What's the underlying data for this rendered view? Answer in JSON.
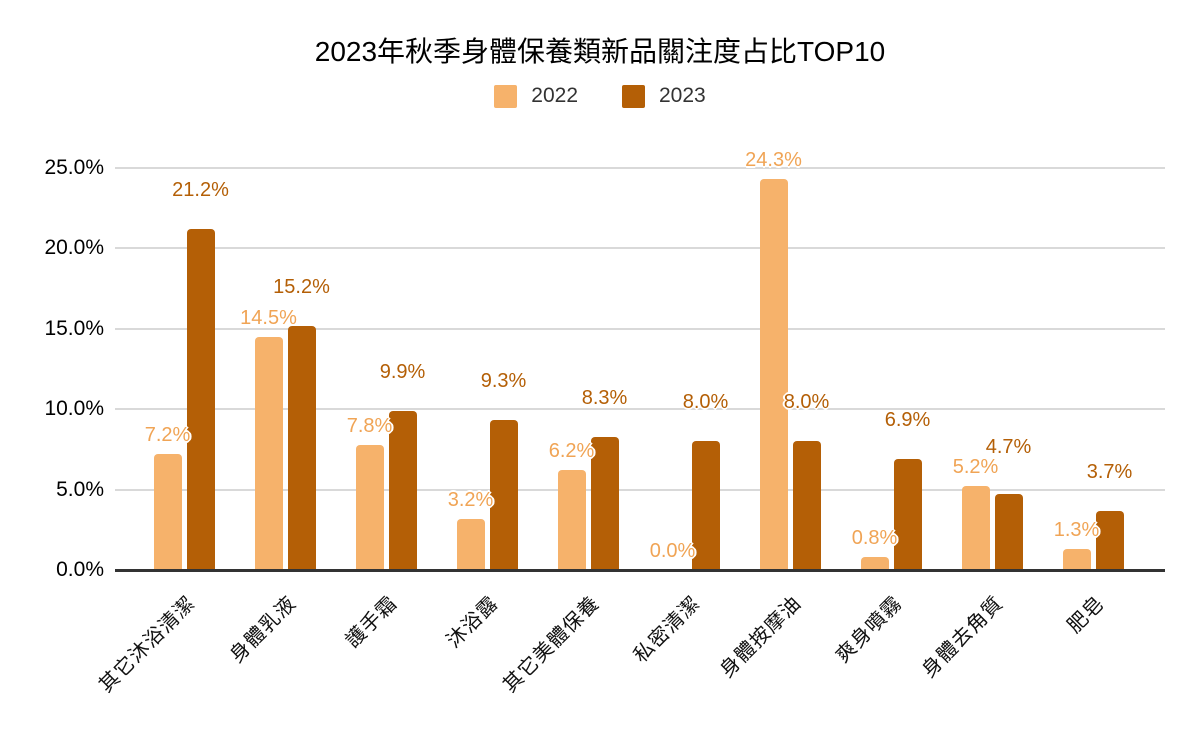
{
  "chart_data": {
    "type": "bar",
    "title": "2023年秋季身體保養類新品關注度占比TOP10",
    "xlabel": "",
    "ylabel": "",
    "categories": [
      "其它沐浴清潔",
      "身體乳液",
      "護手霜",
      "沐浴露",
      "其它美體保養",
      "私密清潔",
      "身體按摩油",
      "爽身噴霧",
      "身體去角質",
      "肥皂"
    ],
    "series": [
      {
        "name": "2022",
        "color": "#F6B26B",
        "label_color": "#F0A455",
        "values": [
          7.2,
          14.5,
          7.8,
          3.2,
          6.2,
          0.0,
          24.3,
          0.8,
          5.2,
          1.3
        ],
        "labels": [
          "7.2%",
          "14.5%",
          "7.8%",
          "3.2%",
          "6.2%",
          "0.0%",
          "24.3%",
          "0.8%",
          "5.2%",
          "1.3%"
        ]
      },
      {
        "name": "2023",
        "color": "#B45F06",
        "label_color": "#B45F06",
        "values": [
          21.2,
          15.2,
          9.9,
          9.3,
          8.3,
          8.0,
          8.0,
          6.9,
          4.7,
          3.7
        ],
        "labels": [
          "21.2%",
          "15.2%",
          "9.9%",
          "9.3%",
          "8.3%",
          "8.0%",
          "8.0%",
          "6.9%",
          "4.7%",
          "3.7%"
        ]
      }
    ],
    "ylim": [
      0,
      25
    ],
    "ytick_labels": [
      "25.0%",
      "20.0%",
      "15.0%",
      "10.0%",
      "5.0%",
      "0.0%"
    ],
    "grid": true,
    "legend_position": "top",
    "gridline_color": "#D9D9D9",
    "axis_line_color": "#333333"
  }
}
